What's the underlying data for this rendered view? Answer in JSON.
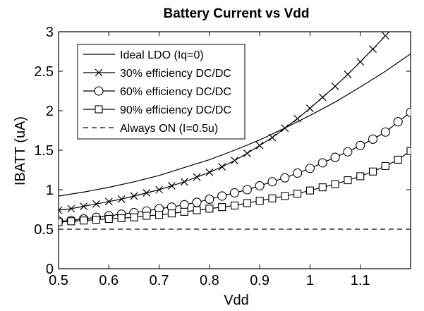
{
  "chart_data": {
    "type": "line",
    "title": "Battery Current vs Vdd",
    "xlabel": "Vdd",
    "ylabel": "IBATT (uA)",
    "xlim": [
      0.5,
      1.2
    ],
    "ylim": [
      0,
      3
    ],
    "xticks": [
      0.5,
      0.6,
      0.7,
      0.8,
      0.9,
      1,
      1.1
    ],
    "xtick_labels": [
      "0.5",
      "0.6",
      "0.7",
      "0.8",
      "0.9",
      "1",
      "1.1"
    ],
    "yticks": [
      0,
      0.5,
      1,
      1.5,
      2,
      2.5,
      3
    ],
    "ytick_labels": [
      "0",
      "0.5",
      "1",
      "1.5",
      "2",
      "2.5",
      "3"
    ],
    "grid": false,
    "legend_position": "top-left",
    "series": [
      {
        "name": "Ideal LDO (Iq=0)",
        "marker": "none",
        "line": "solid",
        "x": [
          0.5,
          0.55,
          0.6,
          0.65,
          0.7,
          0.75,
          0.8,
          0.85,
          0.9,
          0.95,
          1.0,
          1.05,
          1.1,
          1.15,
          1.2
        ],
        "y": [
          0.92,
          0.97,
          1.03,
          1.1,
          1.18,
          1.28,
          1.38,
          1.5,
          1.63,
          1.78,
          1.94,
          2.11,
          2.3,
          2.5,
          2.72
        ]
      },
      {
        "name": "30% efficiency DC/DC",
        "marker": "x",
        "line": "solid",
        "x": [
          0.5,
          0.525,
          0.55,
          0.575,
          0.6,
          0.625,
          0.65,
          0.675,
          0.7,
          0.725,
          0.75,
          0.775,
          0.8,
          0.825,
          0.85,
          0.875,
          0.9,
          0.925,
          0.95,
          0.975,
          1.0,
          1.025,
          1.05,
          1.075,
          1.1,
          1.125,
          1.15
        ],
        "y": [
          0.74,
          0.76,
          0.79,
          0.82,
          0.85,
          0.88,
          0.92,
          0.96,
          1.0,
          1.05,
          1.1,
          1.16,
          1.22,
          1.29,
          1.37,
          1.46,
          1.56,
          1.66,
          1.78,
          1.9,
          2.03,
          2.17,
          2.31,
          2.46,
          2.62,
          2.78,
          2.95
        ]
      },
      {
        "name": "60% efficiency DC/DC",
        "marker": "o",
        "line": "solid",
        "x": [
          0.5,
          0.525,
          0.55,
          0.575,
          0.6,
          0.625,
          0.65,
          0.675,
          0.7,
          0.725,
          0.75,
          0.775,
          0.8,
          0.825,
          0.85,
          0.875,
          0.9,
          0.925,
          0.95,
          0.975,
          1.0,
          1.025,
          1.05,
          1.075,
          1.1,
          1.125,
          1.15,
          1.175,
          1.2
        ],
        "y": [
          0.6,
          0.61,
          0.63,
          0.65,
          0.67,
          0.69,
          0.71,
          0.73,
          0.76,
          0.78,
          0.81,
          0.84,
          0.88,
          0.92,
          0.96,
          1.0,
          1.05,
          1.1,
          1.15,
          1.21,
          1.27,
          1.34,
          1.41,
          1.48,
          1.56,
          1.64,
          1.73,
          1.86,
          1.98
        ]
      },
      {
        "name": "90% efficiency DC/DC",
        "marker": "s",
        "line": "solid",
        "x": [
          0.5,
          0.525,
          0.55,
          0.575,
          0.6,
          0.625,
          0.65,
          0.675,
          0.7,
          0.725,
          0.75,
          0.775,
          0.8,
          0.825,
          0.85,
          0.875,
          0.9,
          0.925,
          0.95,
          0.975,
          1.0,
          1.025,
          1.05,
          1.075,
          1.1,
          1.125,
          1.15,
          1.175,
          1.2
        ],
        "y": [
          0.59,
          0.6,
          0.61,
          0.62,
          0.63,
          0.64,
          0.65,
          0.67,
          0.68,
          0.7,
          0.72,
          0.74,
          0.76,
          0.78,
          0.8,
          0.83,
          0.86,
          0.89,
          0.92,
          0.95,
          0.99,
          1.03,
          1.07,
          1.12,
          1.17,
          1.23,
          1.3,
          1.38,
          1.49
        ]
      },
      {
        "name": "Always ON (I=0.5u)",
        "marker": "none",
        "line": "dashed",
        "x": [
          0.5,
          1.2
        ],
        "y": [
          0.5,
          0.5
        ]
      }
    ]
  }
}
